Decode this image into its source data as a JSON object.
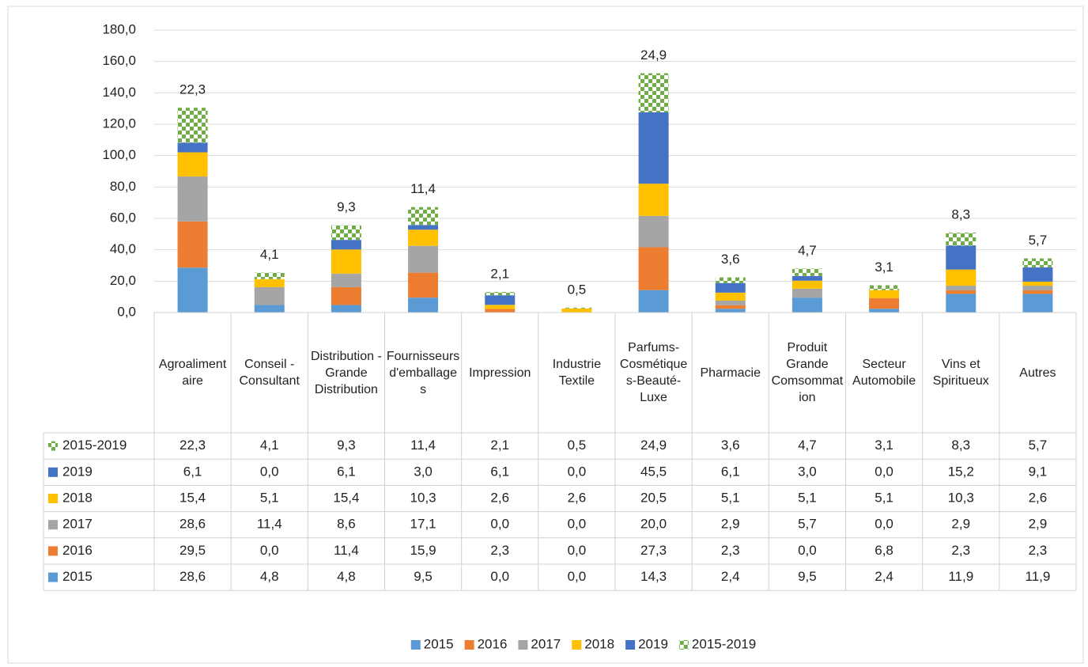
{
  "chart_data": {
    "type": "stacked_bar",
    "categories": [
      "Agroalimentaire",
      "Conseil - Consultant",
      "Distribution - Grande Distribution",
      "Fournisseurs d'emballages",
      "Impression",
      "Industrie Textile",
      "Parfums-Cosmétiques-Beauté-Luxe",
      "Pharmacie",
      "Produit Grande Comsommation",
      "Secteur Automobile",
      "Vins et Spiritueux",
      "Autres"
    ],
    "series": [
      {
        "name": "2015",
        "color": "#5b9bd5",
        "values": [
          28.6,
          4.8,
          4.8,
          9.5,
          0.0,
          0.0,
          14.3,
          2.4,
          9.5,
          2.4,
          11.9,
          11.9
        ],
        "value_labels": [
          "28,6",
          "4,8",
          "4,8",
          "9,5",
          "0,0",
          "0,0",
          "14,3",
          "2,4",
          "9,5",
          "2,4",
          "11,9",
          "11,9"
        ]
      },
      {
        "name": "2016",
        "color": "#ed7d31",
        "values": [
          29.5,
          0.0,
          11.4,
          15.9,
          2.3,
          0.0,
          27.3,
          2.3,
          0.0,
          6.8,
          2.3,
          2.3
        ],
        "value_labels": [
          "29,5",
          "0,0",
          "11,4",
          "15,9",
          "2,3",
          "0,0",
          "27,3",
          "2,3",
          "0,0",
          "6,8",
          "2,3",
          "2,3"
        ]
      },
      {
        "name": "2017",
        "color": "#a5a5a5",
        "values": [
          28.6,
          11.4,
          8.6,
          17.1,
          0.0,
          0.0,
          20.0,
          2.9,
          5.7,
          0.0,
          2.9,
          2.9
        ],
        "value_labels": [
          "28,6",
          "11,4",
          "8,6",
          "17,1",
          "0,0",
          "0,0",
          "20,0",
          "2,9",
          "5,7",
          "0,0",
          "2,9",
          "2,9"
        ]
      },
      {
        "name": "2018",
        "color": "#ffc000",
        "values": [
          15.4,
          5.1,
          15.4,
          10.3,
          2.6,
          2.6,
          20.5,
          5.1,
          5.1,
          5.1,
          10.3,
          2.6
        ],
        "value_labels": [
          "15,4",
          "5,1",
          "15,4",
          "10,3",
          "2,6",
          "2,6",
          "20,5",
          "5,1",
          "5,1",
          "5,1",
          "10,3",
          "2,6"
        ]
      },
      {
        "name": "2019",
        "color": "#4472c4",
        "values": [
          6.1,
          0.0,
          6.1,
          3.0,
          6.1,
          0.0,
          45.5,
          6.1,
          3.0,
          0.0,
          15.2,
          9.1
        ],
        "value_labels": [
          "6,1",
          "0,0",
          "6,1",
          "3,0",
          "6,1",
          "0,0",
          "45,5",
          "6,1",
          "3,0",
          "0,0",
          "15,2",
          "9,1"
        ]
      },
      {
        "name": "2015-2019",
        "color": "#70ad47",
        "pattern": "checkerboard",
        "values": [
          22.3,
          4.1,
          9.3,
          11.4,
          2.1,
          0.5,
          24.9,
          3.6,
          4.7,
          3.1,
          8.3,
          5.7
        ],
        "value_labels": [
          "22,3",
          "4,1",
          "9,3",
          "11,4",
          "2,1",
          "0,5",
          "24,9",
          "3,6",
          "4,7",
          "3,1",
          "8,3",
          "5,7"
        ]
      }
    ],
    "ylim": [
      0,
      180
    ],
    "yticks": [
      {
        "value": 0,
        "label": "0,0"
      },
      {
        "value": 20,
        "label": "20,0"
      },
      {
        "value": 40,
        "label": "40,0"
      },
      {
        "value": 60,
        "label": "60,0"
      },
      {
        "value": 80,
        "label": "80,0"
      },
      {
        "value": 100,
        "label": "100,0"
      },
      {
        "value": 120,
        "label": "120,0"
      },
      {
        "value": 140,
        "label": "140,0"
      },
      {
        "value": 160,
        "label": "160,0"
      },
      {
        "value": 180,
        "label": "180,0"
      }
    ],
    "grid": true,
    "legend": "bottom"
  }
}
